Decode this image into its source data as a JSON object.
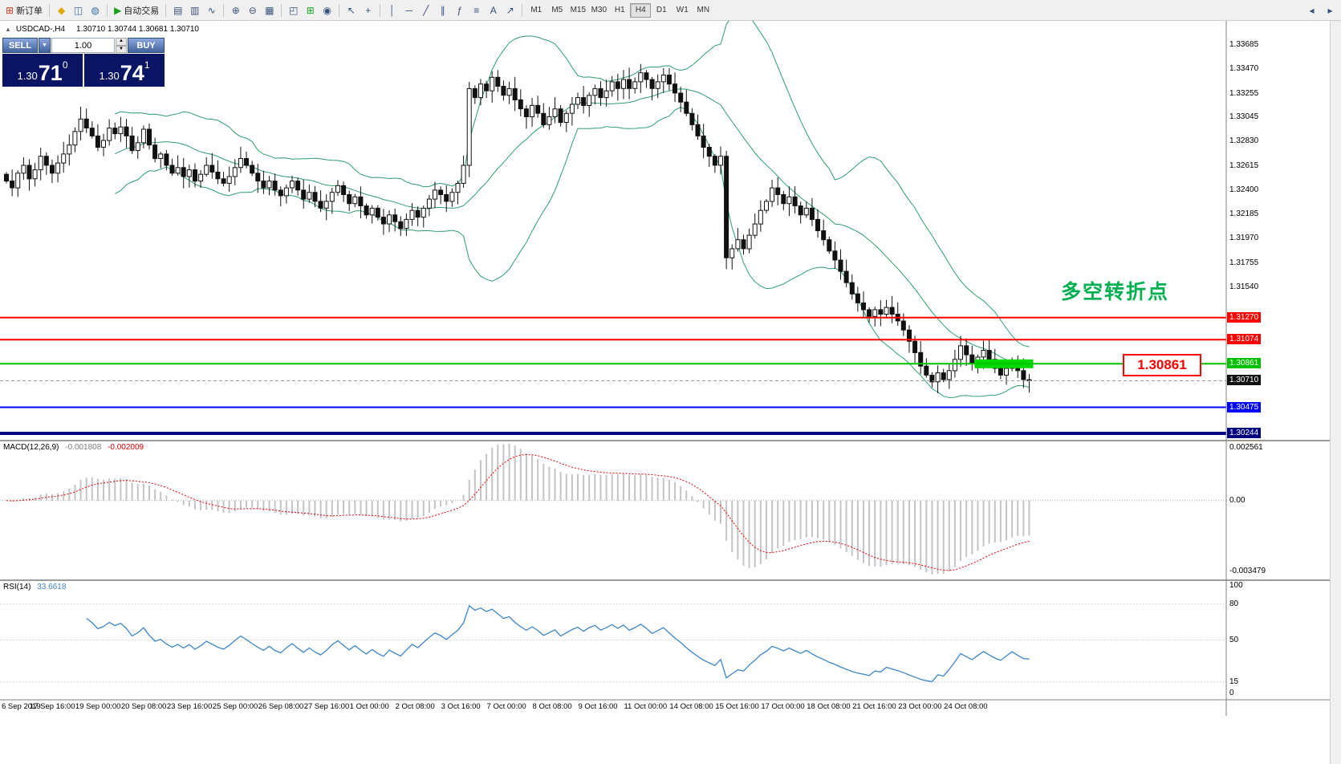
{
  "window": {
    "bg": "#ffffff",
    "chrome": "#f0f0f0"
  },
  "toolbar": {
    "groups": [
      {
        "items": [
          {
            "name": "new-order-button",
            "glyph": "⊞",
            "glyph_color": "#c23b22",
            "label": "新订单"
          }
        ]
      },
      {
        "items": [
          {
            "name": "favorites-button",
            "glyph": "◆",
            "glyph_color": "#e0a800"
          },
          {
            "name": "market-watch-button",
            "glyph": "◫",
            "glyph_color": "#3a6ea5"
          },
          {
            "name": "terminal-button",
            "glyph": "◍",
            "glyph_color": "#3a6ea5"
          }
        ]
      },
      {
        "items": [
          {
            "name": "autotrade-button",
            "glyph": "▶",
            "glyph_color": "#17a01a",
            "label": "自动交易"
          }
        ]
      },
      {
        "items": [
          {
            "name": "bar-chart-button",
            "glyph": "▤"
          },
          {
            "name": "candlestick-chart-button",
            "glyph": "▥"
          },
          {
            "name": "line-chart-button",
            "glyph": "∿"
          }
        ]
      },
      {
        "items": [
          {
            "name": "zoom-in-button",
            "glyph": "⊕"
          },
          {
            "name": "zoom-out-button",
            "glyph": "⊖"
          },
          {
            "name": "grid-button",
            "glyph": "▦"
          }
        ]
      },
      {
        "items": [
          {
            "name": "tile-windows-button",
            "glyph": "◰"
          },
          {
            "name": "new-chart-button",
            "glyph": "⊞",
            "glyph_color": "#17a01a"
          },
          {
            "name": "auto-scroll-button",
            "glyph": "◉"
          }
        ]
      },
      {
        "items": [
          {
            "name": "cursor-button",
            "glyph": "↖"
          },
          {
            "name": "crosshair-button",
            "glyph": "+"
          }
        ]
      },
      {
        "items": [
          {
            "name": "vertical-line-button",
            "glyph": "│"
          },
          {
            "name": "horizontal-line-button",
            "glyph": "─"
          },
          {
            "name": "trendline-button",
            "glyph": "╱"
          },
          {
            "name": "channel-button",
            "glyph": "∥"
          },
          {
            "name": "fibonacci-button",
            "glyph": "ƒ"
          },
          {
            "name": "objects-list-button",
            "glyph": "≡"
          },
          {
            "name": "text-button",
            "glyph": "A"
          },
          {
            "name": "arrows-button",
            "glyph": "↗"
          }
        ]
      }
    ],
    "timeframes": {
      "items": [
        "M1",
        "M5",
        "M15",
        "M30",
        "H1",
        "H4",
        "D1",
        "W1",
        "MN"
      ],
      "active": "H4"
    },
    "right_items": [
      {
        "name": "toolbar-prev-button",
        "glyph": "◂"
      },
      {
        "name": "toolbar-next-button",
        "glyph": "▸"
      }
    ]
  },
  "chart": {
    "header": {
      "marker": "▲",
      "symbol": "USDCAD-,H4",
      "ohlc": "1.30710 1.30744 1.30681 1.30710"
    },
    "trade_panel": {
      "sell_label": "SELL",
      "buy_label": "BUY",
      "volume": "1.00",
      "dropdown_glyph": "▼",
      "up_glyph": "▲",
      "down_glyph": "▼",
      "sell_price_small": "1.30",
      "sell_price_big": "71",
      "sell_price_sup": "0",
      "buy_price_small": "1.30",
      "buy_price_big": "74",
      "buy_price_sup": "1"
    },
    "annotation": {
      "text": "多空转折点",
      "color": "#00b050"
    },
    "callout": {
      "text": "1.30861",
      "color": "#ff0000"
    }
  },
  "chart_data": {
    "type": "candlestick",
    "symbol": "USDCAD",
    "timeframe": "H4",
    "y_range": {
      "min": 1.3018,
      "max": 1.339
    },
    "y_axis": {
      "ticks": [
        "1.33685",
        "1.33470",
        "1.33255",
        "1.33045",
        "1.32830",
        "1.32615",
        "1.32400",
        "1.32185",
        "1.31970",
        "1.31755",
        "1.31540"
      ]
    },
    "x_axis": {
      "labels": [
        "6 Sep 2019",
        "17 Sep 16:00",
        "19 Sep 00:00",
        "20 Sep 08:00",
        "23 Sep 16:00",
        "25 Sep 00:00",
        "26 Sep 08:00",
        "27 Sep 16:00",
        "1 Oct 00:00",
        "2 Oct 08:00",
        "3 Oct 16:00",
        "7 Oct 00:00",
        "8 Oct 08:00",
        "9 Oct 16:00",
        "11 Oct 00:00",
        "14 Oct 08:00",
        "15 Oct 16:00",
        "17 Oct 00:00",
        "18 Oct 08:00",
        "21 Oct 16:00",
        "23 Oct 00:00",
        "24 Oct 08:00"
      ]
    },
    "closes": [
      1.3248,
      1.3242,
      1.3255,
      1.3262,
      1.325,
      1.3258,
      1.327,
      1.3262,
      1.3255,
      1.3264,
      1.3272,
      1.328,
      1.3292,
      1.3303,
      1.3295,
      1.3288,
      1.3278,
      1.3284,
      1.3295,
      1.329,
      1.3296,
      1.3288,
      1.3275,
      1.3282,
      1.3294,
      1.328,
      1.3268,
      1.3272,
      1.3262,
      1.3255,
      1.326,
      1.3252,
      1.3258,
      1.3248,
      1.3254,
      1.3262,
      1.3256,
      1.325,
      1.3246,
      1.3252,
      1.326,
      1.3268,
      1.3262,
      1.3255,
      1.3248,
      1.3242,
      1.3248,
      1.324,
      1.3235,
      1.3242,
      1.3248,
      1.324,
      1.3232,
      1.3238,
      1.323,
      1.3224,
      1.323,
      1.3238,
      1.3244,
      1.3236,
      1.3228,
      1.3234,
      1.3226,
      1.3218,
      1.3224,
      1.3216,
      1.321,
      1.3218,
      1.3212,
      1.3206,
      1.3214,
      1.3222,
      1.3216,
      1.3224,
      1.3232,
      1.324,
      1.3236,
      1.323,
      1.3238,
      1.3246,
      1.3262,
      1.333,
      1.3322,
      1.3334,
      1.3328,
      1.334,
      1.3332,
      1.3324,
      1.333,
      1.332,
      1.3312,
      1.3305,
      1.3315,
      1.3308,
      1.3298,
      1.3305,
      1.3312,
      1.33,
      1.3308,
      1.3316,
      1.3322,
      1.3315,
      1.3324,
      1.333,
      1.3322,
      1.3328,
      1.3336,
      1.333,
      1.3338,
      1.333,
      1.3336,
      1.3344,
      1.3338,
      1.333,
      1.3336,
      1.3342,
      1.3334,
      1.3326,
      1.3318,
      1.3308,
      1.3298,
      1.3288,
      1.3278,
      1.327,
      1.3262,
      1.327,
      1.318,
      1.3188,
      1.3196,
      1.3188,
      1.32,
      1.321,
      1.3222,
      1.323,
      1.3242,
      1.3236,
      1.3228,
      1.3234,
      1.3226,
      1.3218,
      1.3224,
      1.3214,
      1.3204,
      1.3196,
      1.3186,
      1.3178,
      1.3168,
      1.3158,
      1.3148,
      1.314,
      1.3134,
      1.3128,
      1.3134,
      1.313,
      1.3136,
      1.313,
      1.3124,
      1.3116,
      1.3106,
      1.3096,
      1.3084,
      1.3076,
      1.307,
      1.3078,
      1.3072,
      1.308,
      1.309,
      1.3102,
      1.3094,
      1.3086,
      1.3092,
      1.3098,
      1.309,
      1.3082,
      1.3076,
      1.3082,
      1.3088,
      1.308,
      1.3072,
      1.3071
    ],
    "bollinger": {
      "period": 20,
      "deviation": 2,
      "color": "#2e9e6b"
    },
    "levels": [
      {
        "price": 1.3127,
        "label": "1.31270",
        "color": "#ff0000",
        "width": 2
      },
      {
        "price": 1.31074,
        "label": "1.31074",
        "color": "#ff0000",
        "width": 2
      },
      {
        "price": 1.30861,
        "label": "1.30861",
        "color": "#00c000",
        "width": 2
      },
      {
        "price": 1.30475,
        "label": "1.30475",
        "color": "#0000ff",
        "width": 2
      },
      {
        "price": 1.30244,
        "label": "1.30244",
        "color": "#000080",
        "width": 4
      }
    ],
    "current_price": {
      "value": 1.3071,
      "label": "1.30710",
      "color": "#111111"
    },
    "highlight_zone": {
      "price": 1.30861,
      "bar_start": 170,
      "bar_end": 179,
      "color": "#00d800",
      "height": 11
    },
    "macd": {
      "label": "MACD(12,26,9)",
      "value1": "-0.001808",
      "value2": "-0.002009",
      "fast": 12,
      "slow": 26,
      "signal": 9,
      "range": {
        "min": -0.00385,
        "max": 0.0029
      },
      "axis": [
        "0.002561",
        "0.00",
        "-0.003479"
      ],
      "histogram_color": "#c4c4c4",
      "signal_color": "#e60000"
    },
    "rsi": {
      "label": "RSI(14)",
      "value": "33.6618",
      "period": 14,
      "color": "#3d85c8",
      "axis": [
        "100",
        "80",
        "50",
        "15",
        "0"
      ],
      "levels": [
        80,
        50,
        15
      ]
    }
  }
}
